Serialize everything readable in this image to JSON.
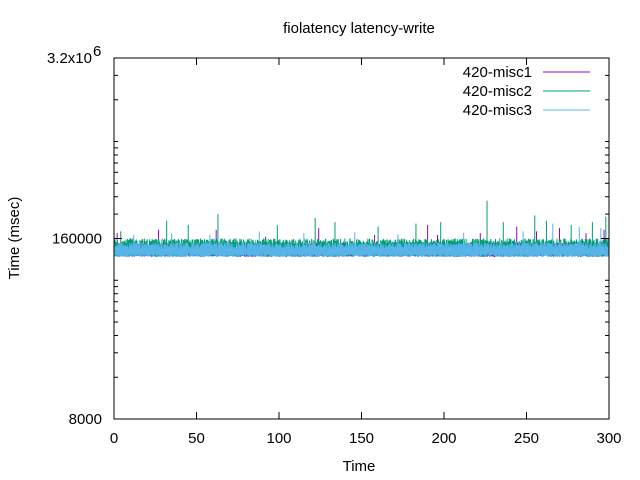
{
  "chart_data": {
    "type": "line",
    "title": "fiolatency latency-write",
    "xlabel": "Time",
    "ylabel": "Time (msec)",
    "xlim": [
      0,
      300
    ],
    "ylim": [
      8000,
      3200000
    ],
    "yscale": "log",
    "grid": false,
    "legend_position": "top-right",
    "x_ticks": [
      {
        "value": 0,
        "label": "0"
      },
      {
        "value": 50,
        "label": "50"
      },
      {
        "value": 100,
        "label": "100"
      },
      {
        "value": 150,
        "label": "150"
      },
      {
        "value": 200,
        "label": "200"
      },
      {
        "value": 250,
        "label": "250"
      },
      {
        "value": 300,
        "label": "300"
      }
    ],
    "y_ticks": [
      {
        "value": 8000,
        "label": "8000"
      },
      {
        "value": 160000,
        "label": "160000"
      },
      {
        "value": 3200000,
        "label": "3.2x10",
        "exp": "6"
      }
    ],
    "series": [
      {
        "name": "420-misc1",
        "color": "#9400d3",
        "baseline": [
          118000,
          150000
        ],
        "spikes": [
          [
            2,
            175000
          ],
          [
            10,
            160000
          ],
          [
            27,
            185000
          ],
          [
            62,
            185000
          ],
          [
            92,
            165000
          ],
          [
            124,
            190000
          ],
          [
            158,
            170000
          ],
          [
            190,
            200000
          ],
          [
            196,
            170000
          ],
          [
            222,
            175000
          ],
          [
            244,
            195000
          ],
          [
            256,
            180000
          ],
          [
            270,
            190000
          ],
          [
            286,
            175000
          ],
          [
            297,
            185000
          ]
        ]
      },
      {
        "name": "420-misc2",
        "color": "#009e73",
        "baseline": [
          118000,
          160000
        ],
        "spikes": [
          [
            4,
            180000
          ],
          [
            32,
            215000
          ],
          [
            45,
            200000
          ],
          [
            63,
            240000
          ],
          [
            99,
            200000
          ],
          [
            122,
            225000
          ],
          [
            134,
            210000
          ],
          [
            160,
            195000
          ],
          [
            183,
            205000
          ],
          [
            198,
            210000
          ],
          [
            226,
            300000
          ],
          [
            236,
            210000
          ],
          [
            255,
            235000
          ],
          [
            262,
            215000
          ],
          [
            277,
            200000
          ],
          [
            290,
            210000
          ],
          [
            298,
            230000
          ]
        ]
      },
      {
        "name": "420-misc3",
        "color": "#56b4e9",
        "baseline": [
          118000,
          150000
        ],
        "spikes": [
          [
            12,
            170000
          ],
          [
            35,
            175000
          ],
          [
            58,
            170000
          ],
          [
            88,
            180000
          ],
          [
            115,
            175000
          ],
          [
            146,
            178000
          ],
          [
            172,
            172000
          ],
          [
            212,
            176000
          ],
          [
            248,
            180000
          ],
          [
            266,
            205000
          ],
          [
            282,
            195000
          ],
          [
            295,
            190000
          ]
        ]
      }
    ]
  }
}
